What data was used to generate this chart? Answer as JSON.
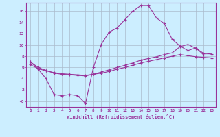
{
  "xlabel": "Windchill (Refroidissement éolien,°C)",
  "bg_color": "#cceeff",
  "grid_color": "#aabbcc",
  "line_color": "#993399",
  "xlim": [
    -0.5,
    23.5
  ],
  "ylim": [
    -1.0,
    17.5
  ],
  "xticks": [
    0,
    1,
    2,
    3,
    4,
    5,
    6,
    7,
    8,
    9,
    10,
    11,
    12,
    13,
    14,
    15,
    16,
    17,
    18,
    19,
    20,
    21,
    22,
    23
  ],
  "yticks": [
    0,
    2,
    4,
    6,
    8,
    10,
    12,
    14,
    16
  ],
  "ytick_labels": [
    "-0",
    "2",
    "4",
    "6",
    "8",
    "10",
    "12",
    "14",
    "16"
  ],
  "line1_x": [
    0,
    1,
    2,
    3,
    4,
    5,
    6,
    7,
    8,
    9,
    10,
    11,
    12,
    13,
    14,
    15,
    16,
    17,
    18,
    19,
    20,
    21,
    22,
    23
  ],
  "line1_y": [
    7.0,
    5.7,
    4.0,
    1.2,
    1.0,
    1.2,
    1.0,
    -0.4,
    6.0,
    10.1,
    12.3,
    13.0,
    14.5,
    16.0,
    17.0,
    17.0,
    14.8,
    13.8,
    11.0,
    9.8,
    9.0,
    9.5,
    8.2,
    8.2
  ],
  "line2_x": [
    0,
    1,
    2,
    3,
    4,
    5,
    6,
    7,
    8,
    9,
    10,
    11,
    12,
    13,
    14,
    15,
    16,
    17,
    18,
    19,
    20,
    21,
    22,
    23
  ],
  "line2_y": [
    7.0,
    6.0,
    5.5,
    5.0,
    4.8,
    4.7,
    4.6,
    4.5,
    4.8,
    5.2,
    5.6,
    6.0,
    6.4,
    6.8,
    7.3,
    7.6,
    7.9,
    8.3,
    8.6,
    9.7,
    10.1,
    9.4,
    8.5,
    8.4
  ],
  "line3_x": [
    0,
    1,
    2,
    3,
    4,
    5,
    6,
    7,
    8,
    9,
    10,
    11,
    12,
    13,
    14,
    15,
    16,
    17,
    18,
    19,
    20,
    21,
    22,
    23
  ],
  "line3_y": [
    6.5,
    5.8,
    5.4,
    5.1,
    4.9,
    4.8,
    4.7,
    4.6,
    4.8,
    5.0,
    5.3,
    5.7,
    6.0,
    6.4,
    6.8,
    7.1,
    7.4,
    7.7,
    8.0,
    8.3,
    8.1,
    7.9,
    7.8,
    7.7
  ]
}
